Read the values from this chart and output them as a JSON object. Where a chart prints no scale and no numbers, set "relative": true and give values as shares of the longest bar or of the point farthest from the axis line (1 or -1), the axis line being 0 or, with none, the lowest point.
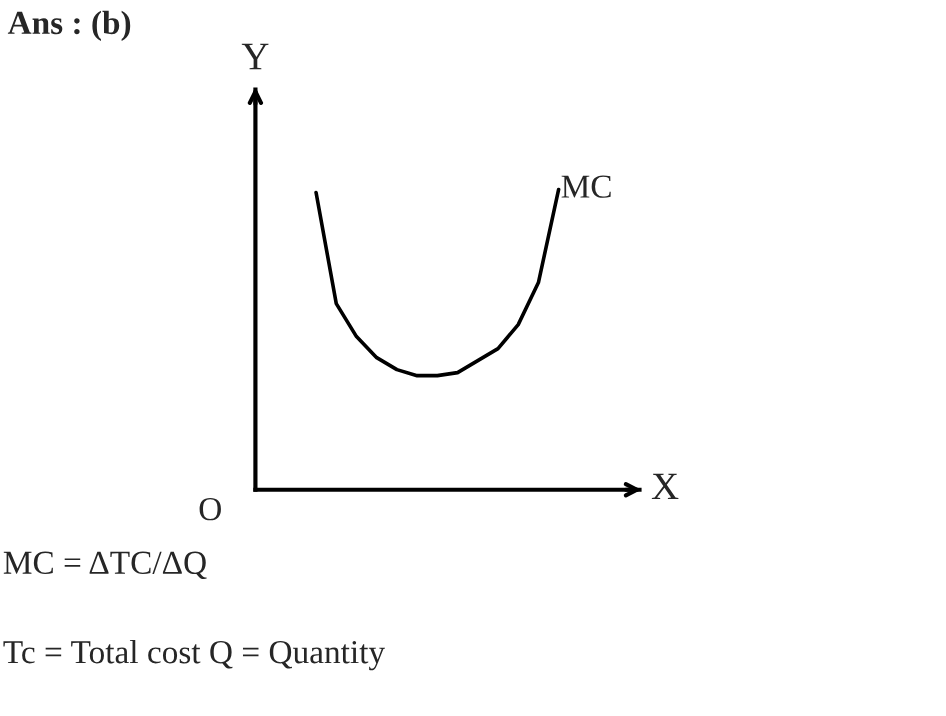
{
  "chart_data": {
    "type": "line",
    "title": "Ans : (b)",
    "xlabel": "X",
    "ylabel": "Y",
    "relative": true,
    "legend": false,
    "marker": "none",
    "line_style": "solid",
    "categories": [
      null,
      null,
      null,
      null,
      null,
      null,
      null,
      null,
      null,
      null,
      null,
      null,
      null,
      null,
      null,
      null,
      null,
      null,
      null,
      null
    ],
    "series": [
      {
        "name": "MC",
        "color": "#000000",
        "values": [
          null,
          null,
          null,
          0.99,
          0.62,
          0.51,
          0.44,
          0.4,
          0.38,
          0.38,
          0.39,
          0.43,
          0.47,
          0.55,
          0.69,
          1,
          null,
          null,
          null,
          null
        ]
      }
    ],
    "annotations": [
      "O",
      "MC = ΔTC/ΔQ",
      "Tc = Total cost Q = Quantity"
    ]
  }
}
